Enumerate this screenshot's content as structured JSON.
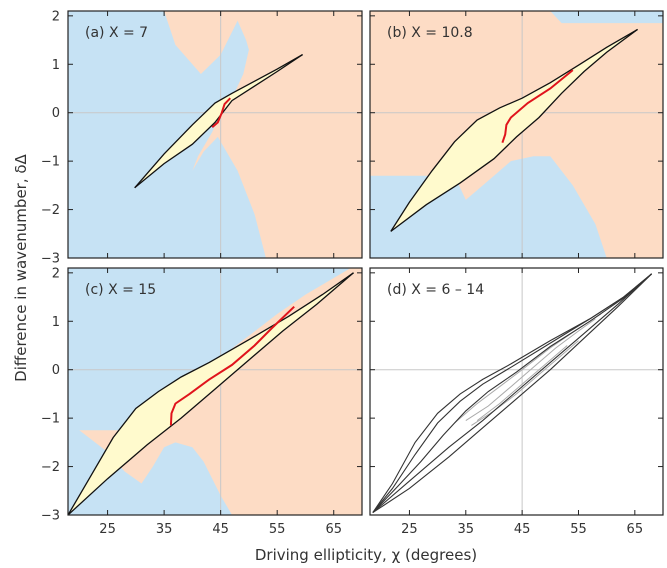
{
  "figure": {
    "xlabel": "Driving ellipticity, χ (degrees)",
    "ylabel": "Difference in wavenumber, δΔ"
  },
  "colors": {
    "region_blue": "#c6e2f4",
    "region_orange": "#fddcc5",
    "fill_yellow": "#fffacd",
    "boundary": "#111111",
    "red_curve": "#e0141c",
    "grid": "#c8c8c8",
    "dark_curve": "#333333",
    "light_curve": "#aaaaaa"
  },
  "chart_data": [
    {
      "type": "line",
      "label": "(a)  X = 7",
      "xlim": [
        18,
        70
      ],
      "ylim": [
        -3,
        2.1
      ],
      "xticks": [
        25,
        35,
        45,
        55,
        65
      ],
      "yticks": [
        -3,
        -2,
        -1,
        0,
        1,
        2
      ],
      "show_xticklabels": false,
      "show_yticklabels": true,
      "background": "regions",
      "blue_region": [
        [
          18,
          2.1
        ],
        [
          35,
          2.1
        ],
        [
          37,
          1.4
        ],
        [
          41.5,
          0.8
        ],
        [
          45,
          1.2
        ],
        [
          48,
          1.9
        ],
        [
          49.5,
          1.5
        ],
        [
          50,
          1.3
        ],
        [
          49,
          0.8
        ],
        [
          47,
          0.3
        ],
        [
          45,
          0
        ],
        [
          43.5,
          -0.4
        ],
        [
          41,
          -0.9
        ],
        [
          40,
          -1.2
        ],
        [
          42,
          -0.8
        ],
        [
          44.5,
          -0.5
        ],
        [
          48,
          -1.2
        ],
        [
          51,
          -2.1
        ],
        [
          53,
          -3
        ],
        [
          18,
          -3
        ]
      ],
      "upper_branch": [
        [
          29.8,
          -1.55
        ],
        [
          35,
          -0.85
        ],
        [
          40,
          -0.25
        ],
        [
          44,
          0.2
        ],
        [
          47,
          0.4
        ],
        [
          51,
          0.65
        ],
        [
          55,
          0.9
        ],
        [
          59.5,
          1.2
        ]
      ],
      "lower_branch": [
        [
          29.8,
          -1.55
        ],
        [
          35,
          -1.05
        ],
        [
          40,
          -0.65
        ],
        [
          44,
          -0.2
        ],
        [
          47,
          0.25
        ],
        [
          51,
          0.55
        ],
        [
          55,
          0.85
        ],
        [
          59.5,
          1.2
        ]
      ],
      "red_curve": [
        [
          43.5,
          -0.3
        ],
        [
          44.5,
          -0.2
        ],
        [
          45.2,
          0
        ],
        [
          45.7,
          0.18
        ],
        [
          46.7,
          0.3
        ]
      ]
    },
    {
      "type": "line",
      "label": "(b)  X = 10.8",
      "xlim": [
        18,
        70
      ],
      "ylim": [
        -3,
        2.1
      ],
      "xticks": [
        25,
        35,
        45,
        55,
        65
      ],
      "yticks": [
        -3,
        -2,
        -1,
        0,
        1,
        2
      ],
      "show_xticklabels": false,
      "show_yticklabels": false,
      "background": "regions",
      "blue_region": [
        [
          18,
          2.1
        ],
        [
          70,
          2.1
        ],
        [
          70,
          1.85
        ],
        [
          52,
          1.85
        ],
        [
          50,
          2.1
        ],
        [
          18,
          2.1
        ],
        [
          18,
          -3
        ],
        [
          60,
          -3
        ],
        [
          58,
          -2.3
        ],
        [
          54,
          -1.5
        ],
        [
          50,
          -0.9
        ],
        [
          47,
          -0.9
        ],
        [
          43,
          -1.0
        ],
        [
          40,
          -1.3
        ],
        [
          37,
          -1.6
        ],
        [
          35,
          -1.8
        ],
        [
          33,
          -1.3
        ],
        [
          18,
          -1.3
        ]
      ],
      "upper_branch": [
        [
          21.7,
          -2.45
        ],
        [
          25,
          -1.85
        ],
        [
          29,
          -1.2
        ],
        [
          33,
          -0.6
        ],
        [
          37,
          -0.15
        ],
        [
          41,
          0.1
        ],
        [
          45,
          0.3
        ],
        [
          50,
          0.62
        ],
        [
          55,
          0.98
        ],
        [
          60,
          1.35
        ],
        [
          65.5,
          1.72
        ]
      ],
      "lower_branch": [
        [
          21.7,
          -2.45
        ],
        [
          28,
          -1.9
        ],
        [
          34,
          -1.45
        ],
        [
          40,
          -0.95
        ],
        [
          44,
          -0.5
        ],
        [
          48,
          -0.1
        ],
        [
          52,
          0.4
        ],
        [
          56,
          0.85
        ],
        [
          60,
          1.25
        ],
        [
          65.5,
          1.72
        ]
      ],
      "red_curve": [
        [
          41.5,
          -0.62
        ],
        [
          42,
          -0.45
        ],
        [
          42.2,
          -0.25
        ],
        [
          43,
          -0.1
        ],
        [
          46,
          0.2
        ],
        [
          50,
          0.5
        ],
        [
          54,
          0.88
        ]
      ]
    },
    {
      "type": "line",
      "label": "(c)  X = 15",
      "xlim": [
        18,
        70
      ],
      "ylim": [
        -3,
        2.1
      ],
      "xticks": [
        25,
        35,
        45,
        55,
        65
      ],
      "yticks": [
        -3,
        -2,
        -1,
        0,
        1,
        2
      ],
      "show_xticklabels": true,
      "show_yticklabels": true,
      "background": "regions",
      "blue_region": [
        [
          18,
          2.1
        ],
        [
          68,
          2.1
        ],
        [
          60,
          1.55
        ],
        [
          55,
          1.15
        ],
        [
          50,
          0.7
        ],
        [
          46,
          0.35
        ],
        [
          42,
          0.0
        ],
        [
          39.5,
          -0.2
        ],
        [
          37,
          -0.45
        ],
        [
          35.5,
          -0.9
        ],
        [
          36,
          -1.15
        ],
        [
          32,
          -1.25
        ],
        [
          18,
          -1.25
        ],
        [
          18,
          -3
        ],
        [
          20.5,
          -3
        ],
        [
          18,
          -3
        ],
        [
          18,
          -3
        ],
        [
          47,
          -3
        ],
        [
          45,
          -2.6
        ],
        [
          42,
          -1.9
        ],
        [
          40,
          -1.6
        ],
        [
          37,
          -1.5
        ],
        [
          35,
          -1.6
        ],
        [
          33,
          -2.0
        ],
        [
          31,
          -2.35
        ],
        [
          28,
          -2.1
        ],
        [
          25,
          -1.7
        ],
        [
          20,
          -1.25
        ],
        [
          18,
          -1.25
        ]
      ],
      "upper_branch": [
        [
          18,
          -3
        ],
        [
          22,
          -2.2
        ],
        [
          26,
          -1.4
        ],
        [
          30,
          -0.8
        ],
        [
          34,
          -0.45
        ],
        [
          38,
          -0.15
        ],
        [
          43,
          0.15
        ],
        [
          50,
          0.62
        ],
        [
          57,
          1.1
        ],
        [
          63,
          1.55
        ],
        [
          68.5,
          2.0
        ]
      ],
      "lower_branch": [
        [
          18,
          -3
        ],
        [
          25,
          -2.25
        ],
        [
          32,
          -1.55
        ],
        [
          38,
          -1.0
        ],
        [
          44,
          -0.4
        ],
        [
          50,
          0.2
        ],
        [
          56,
          0.8
        ],
        [
          62,
          1.35
        ],
        [
          68.5,
          2.0
        ]
      ],
      "red_curve": [
        [
          36.2,
          -1.15
        ],
        [
          36.3,
          -0.9
        ],
        [
          37,
          -0.7
        ],
        [
          39.5,
          -0.5
        ],
        [
          43,
          -0.2
        ],
        [
          47,
          0.1
        ],
        [
          51,
          0.5
        ],
        [
          54,
          0.85
        ],
        [
          58,
          1.3
        ]
      ]
    },
    {
      "type": "line",
      "label": "(d)  X = 6 – 14",
      "xlim": [
        18,
        70
      ],
      "ylim": [
        -3,
        2.1
      ],
      "xticks": [
        25,
        35,
        45,
        55,
        65
      ],
      "yticks": [
        -3,
        -2,
        -1,
        0,
        1,
        2
      ],
      "show_xticklabels": true,
      "show_yticklabels": false,
      "background": "white",
      "dark_curves": [
        [
          [
            18.5,
            -2.95
          ],
          [
            22,
            -2.35
          ],
          [
            26,
            -1.5
          ],
          [
            30,
            -0.9
          ],
          [
            34,
            -0.5
          ],
          [
            38,
            -0.2
          ],
          [
            43,
            0.12
          ],
          [
            50,
            0.6
          ],
          [
            57,
            1.05
          ],
          [
            63,
            1.5
          ],
          [
            68,
            1.98
          ]
        ],
        [
          [
            18.5,
            -2.95
          ],
          [
            22,
            -2.45
          ],
          [
            26,
            -1.75
          ],
          [
            30,
            -1.1
          ],
          [
            34,
            -0.65
          ],
          [
            38,
            -0.3
          ],
          [
            43,
            0.05
          ],
          [
            50,
            0.55
          ],
          [
            57,
            1.05
          ],
          [
            63,
            1.5
          ],
          [
            68,
            1.98
          ]
        ],
        [
          [
            18.5,
            -2.95
          ],
          [
            23,
            -2.4
          ],
          [
            27,
            -1.9
          ],
          [
            31,
            -1.35
          ],
          [
            35,
            -0.85
          ],
          [
            39,
            -0.45
          ],
          [
            44,
            -0.05
          ],
          [
            50,
            0.48
          ],
          [
            57,
            1.0
          ],
          [
            63,
            1.48
          ],
          [
            68,
            1.98
          ]
        ],
        [
          [
            18.5,
            -2.95
          ],
          [
            25,
            -2.3
          ],
          [
            32,
            -1.6
          ],
          [
            38,
            -1.05
          ],
          [
            44,
            -0.45
          ],
          [
            50,
            0.15
          ],
          [
            56,
            0.75
          ],
          [
            62,
            1.35
          ],
          [
            68,
            1.98
          ]
        ],
        [
          [
            18.5,
            -2.95
          ],
          [
            25,
            -2.45
          ],
          [
            32,
            -1.8
          ],
          [
            38,
            -1.2
          ],
          [
            44,
            -0.6
          ],
          [
            50,
            0.0
          ],
          [
            56,
            0.65
          ],
          [
            62,
            1.3
          ],
          [
            68,
            1.98
          ]
        ]
      ],
      "light_curves": [
        [
          [
            33,
            -1.1
          ],
          [
            37,
            -0.7
          ],
          [
            41,
            -0.35
          ],
          [
            45,
            0.0
          ],
          [
            50,
            0.45
          ],
          [
            55,
            0.85
          ],
          [
            59,
            1.15
          ]
        ],
        [
          [
            35,
            -1.05
          ],
          [
            39,
            -0.75
          ],
          [
            43,
            -0.35
          ],
          [
            47,
            0.05
          ],
          [
            51,
            0.45
          ],
          [
            55,
            0.8
          ],
          [
            58,
            1.05
          ]
        ],
        [
          [
            36,
            -1.15
          ],
          [
            40,
            -0.85
          ],
          [
            44,
            -0.5
          ],
          [
            48,
            -0.1
          ],
          [
            52,
            0.3
          ],
          [
            55,
            0.6
          ]
        ],
        [
          [
            37,
            -1.05
          ],
          [
            41,
            -0.7
          ],
          [
            45,
            -0.3
          ],
          [
            49,
            0.1
          ],
          [
            53,
            0.5
          ]
        ]
      ]
    }
  ]
}
